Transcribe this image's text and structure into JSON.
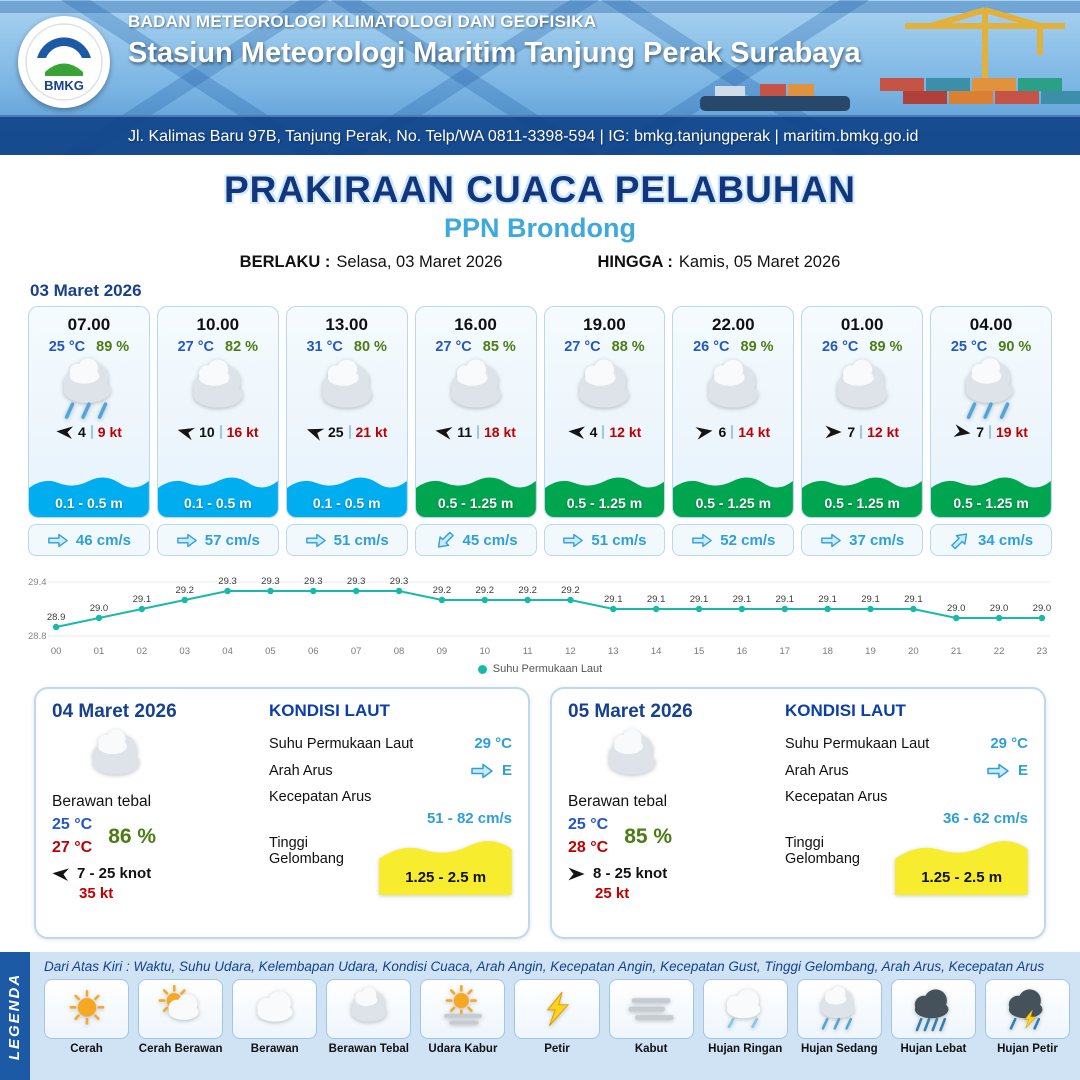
{
  "colors": {
    "dark_blue": "#15418F",
    "light_blue": "#3FA9DC",
    "green_text": "#4B7D14",
    "red_text": "#C00000",
    "cyan_band": "#00AEEF",
    "green_band": "#00A550",
    "yellow_wave": "#F7EC2E",
    "chart_line": "#18B9A7"
  },
  "header": {
    "logo_text": "BMKG",
    "org": "BADAN METEOROLOGI KLIMATOLOGI DAN GEOFISIKA",
    "station": "Stasiun Meteorologi Maritim Tanjung Perak Surabaya",
    "address": "Jl. Kalimas Baru 97B, Tanjung Perak, No. Telp/WA 0811-3398-594 | IG: bmkg.tanjungperak | maritim.bmkg.go.id"
  },
  "title": {
    "main": "PRAKIRAAN CUACA PELABUHAN",
    "sub": "PPN Brondong",
    "berlaku_label": "BERLAKU :",
    "berlaku_value": "Selasa, 03 Maret 2026",
    "hingga_label": "HINGGA :",
    "hingga_value": "Kamis, 05 Maret 2026"
  },
  "hourly_date": "03 Maret 2026",
  "hourly": [
    {
      "time": "07.00",
      "temp": "25 °C",
      "rh": "89 %",
      "icon": "hujan-sedang",
      "wind_speed": "4",
      "wind_gust": "9 kt",
      "wind_deg": 185,
      "wave": "0.1 - 0.5 m",
      "wave_color": "#00AEEF",
      "current": "46 cm/s",
      "current_deg": 0
    },
    {
      "time": "10.00",
      "temp": "27 °C",
      "rh": "82 %",
      "icon": "berawan-tebal",
      "wind_speed": "10",
      "wind_gust": "16 kt",
      "wind_deg": 195,
      "wave": "0.1 - 0.5 m",
      "wave_color": "#00AEEF",
      "current": "57 cm/s",
      "current_deg": 0
    },
    {
      "time": "13.00",
      "temp": "31 °C",
      "rh": "80 %",
      "icon": "berawan-tebal",
      "wind_speed": "25",
      "wind_gust": "21 kt",
      "wind_deg": 200,
      "wave": "0.1 - 0.5 m",
      "wave_color": "#00AEEF",
      "current": "51 cm/s",
      "current_deg": 0
    },
    {
      "time": "16.00",
      "temp": "27 °C",
      "rh": "85 %",
      "icon": "berawan-tebal",
      "wind_speed": "11",
      "wind_gust": "18 kt",
      "wind_deg": 190,
      "wave": "0.5 - 1.25 m",
      "wave_color": "#00A550",
      "current": "45 cm/s",
      "current_deg": 135
    },
    {
      "time": "19.00",
      "temp": "27 °C",
      "rh": "88 %",
      "icon": "berawan-tebal",
      "wind_speed": "4",
      "wind_gust": "12 kt",
      "wind_deg": 185,
      "wave": "0.5 - 1.25 m",
      "wave_color": "#00A550",
      "current": "51 cm/s",
      "current_deg": 0
    },
    {
      "time": "22.00",
      "temp": "26 °C",
      "rh": "89 %",
      "icon": "berawan-tebal",
      "wind_speed": "6",
      "wind_gust": "14 kt",
      "wind_deg": 350,
      "wave": "0.5 - 1.25 m",
      "wave_color": "#00A550",
      "current": "52 cm/s",
      "current_deg": 0
    },
    {
      "time": "01.00",
      "temp": "26 °C",
      "rh": "89 %",
      "icon": "berawan-tebal",
      "wind_speed": "7",
      "wind_gust": "12 kt",
      "wind_deg": 0,
      "wave": "0.5 - 1.25 m",
      "wave_color": "#00A550",
      "current": "37 cm/s",
      "current_deg": 0
    },
    {
      "time": "04.00",
      "temp": "25 °C",
      "rh": "90 %",
      "icon": "hujan-sedang",
      "wind_speed": "7",
      "wind_gust": "19 kt",
      "wind_deg": 10,
      "wave": "0.5 - 1.25 m",
      "wave_color": "#00A550",
      "current": "34 cm/s",
      "current_deg": -45
    }
  ],
  "chart_data": {
    "type": "line",
    "x": [
      "00",
      "01",
      "02",
      "03",
      "04",
      "05",
      "06",
      "07",
      "08",
      "09",
      "10",
      "11",
      "12",
      "13",
      "14",
      "15",
      "16",
      "17",
      "18",
      "19",
      "20",
      "21",
      "22",
      "23"
    ],
    "values": [
      28.9,
      29.0,
      29.1,
      29.2,
      29.3,
      29.3,
      29.3,
      29.3,
      29.3,
      29.2,
      29.2,
      29.2,
      29.2,
      29.1,
      29.1,
      29.1,
      29.1,
      29.1,
      29.1,
      29.1,
      29.1,
      29.0,
      29.0,
      29.0
    ],
    "ylim": [
      28.8,
      29.4
    ],
    "legend_label": "Suhu Permukaan Laut",
    "legend_position": "bottom",
    "grid": true
  },
  "sea_labels": {
    "title": "KONDISI LAUT",
    "sst": "Suhu Permukaan Laut",
    "arah": "Arah Arus",
    "kecepatan": "Kecepatan Arus",
    "tinggi": "Tinggi Gelombang"
  },
  "daily": [
    {
      "date": "04 Maret 2026",
      "icon": "berawan-tebal",
      "desc": "Berawan tebal",
      "temp_min": "25 °C",
      "temp_max": "27 °C",
      "rh": "86 %",
      "wind_deg": 185,
      "wind_range": "7  - 25 knot",
      "gust": "35 kt",
      "sst": "29 °C",
      "arah": "E",
      "arah_deg": 0,
      "kecepatan": "51 - 82 cm/s",
      "tinggi": "1.25 - 2.5 m"
    },
    {
      "date": "05 Maret 2026",
      "icon": "berawan-tebal",
      "desc": "Berawan tebal",
      "temp_min": "25 °C",
      "temp_max": "28 °C",
      "rh": "85 %",
      "wind_deg": 0,
      "wind_range": "8  - 25 knot",
      "gust": "25 kt",
      "sst": "29 °C",
      "arah": "E",
      "arah_deg": 0,
      "kecepatan": "36 - 62 cm/s",
      "tinggi": "1.25 - 2.5 m"
    }
  ],
  "legend": {
    "vertical": "LEGENDA",
    "note": "Dari Atas Kiri : Waktu, Suhu Udara, Kelembapan Udara, Kondisi Cuaca, Arah Angin, Kecepatan Angin, Kecepatan Gust, Tinggi Gelombang, Arah Arus, Kecepatan Arus",
    "items": [
      {
        "label": "Cerah",
        "icon": "cerah"
      },
      {
        "label": "Cerah Berawan",
        "icon": "cerah-berawan"
      },
      {
        "label": "Berawan",
        "icon": "berawan"
      },
      {
        "label": "Berawan Tebal",
        "icon": "berawan-tebal"
      },
      {
        "label": "Udara Kabur",
        "icon": "udara-kabur"
      },
      {
        "label": "Petir",
        "icon": "petir"
      },
      {
        "label": "Kabut",
        "icon": "kabut"
      },
      {
        "label": "Hujan Ringan",
        "icon": "hujan-ringan"
      },
      {
        "label": "Hujan Sedang",
        "icon": "hujan-sedang"
      },
      {
        "label": "Hujan Lebat",
        "icon": "hujan-lebat"
      },
      {
        "label": "Hujan Petir",
        "icon": "hujan-petir"
      }
    ]
  }
}
